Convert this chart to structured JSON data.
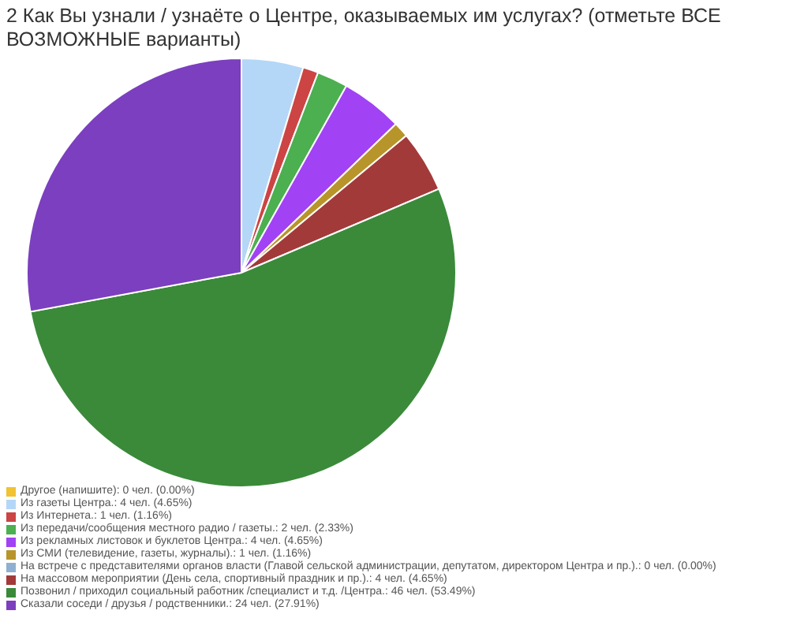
{
  "chart_data": {
    "type": "pie",
    "title": "2 Как Вы узнали / узнаёте о Центре, оказываемых им услугах? (отметьте ВСЕ ВОЗМОЖНЫЕ варианты)",
    "categories": [
      "Другое (напишите): 0 чел. (0.00%)",
      "Из газеты Центра.: 4 чел. (4.65%)",
      "Из Интернета.: 1 чел. (1.16%)",
      "Из передачи/сообщения местного радио / газеты.: 2 чел. (2.33%)",
      "Из рекламных листовок и буклетов Центра.: 4 чел. (4.65%)",
      "Из СМИ (телевидение, газеты, журналы).: 1 чел. (1.16%)",
      "На встрече с представителями органов власти (Главой сельской администрации, депутатом, директором Центра и пр.).: 0 чел. (0.00%)",
      "На массовом мероприятии (День села, спортивный праздник и пр.).: 4 чел. (4.65%)",
      "Позвонил / приходил социальный работник /специалист и т.д. /Центра.: 46 чел. (53.49%)",
      "Сказали соседи / друзья / родственники.: 24 чел. (27.91%)"
    ],
    "values": [
      0,
      4,
      1,
      2,
      4,
      1,
      0,
      4,
      46,
      24
    ],
    "colors": [
      "#f1c232",
      "#b4d7f7",
      "#cc4444",
      "#4caf50",
      "#a142f4",
      "#b8952a",
      "#8fb0d0",
      "#a33a3a",
      "#3a8a3a",
      "#7b3fbf"
    ],
    "legend": "bottom"
  }
}
